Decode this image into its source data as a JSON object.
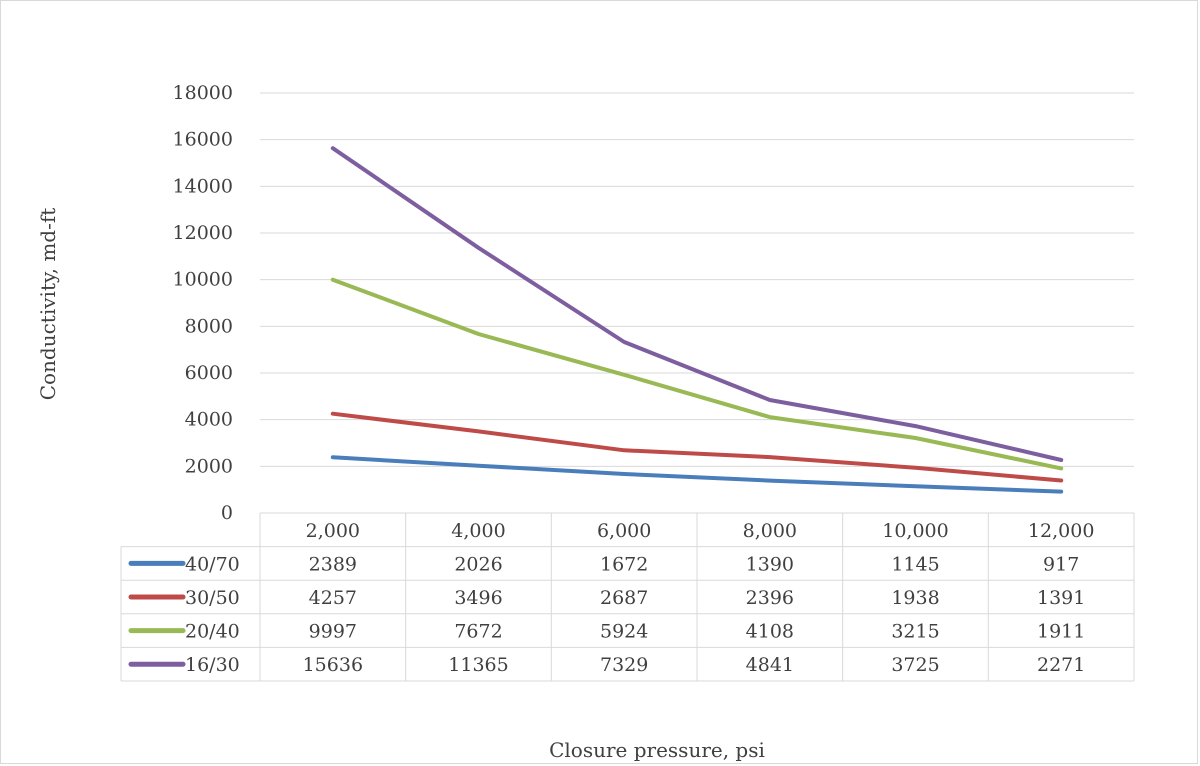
{
  "chart_data": {
    "type": "line",
    "title": "",
    "xlabel": "Closure pressure, psi",
    "ylabel": "Conductivity, md-ft",
    "categories": [
      "2,000",
      "4,000",
      "6,000",
      "8,000",
      "10,000",
      "12,000"
    ],
    "ylim": [
      0,
      18000
    ],
    "yticks": [
      0,
      2000,
      4000,
      6000,
      8000,
      10000,
      12000,
      14000,
      16000,
      18000
    ],
    "grid": true,
    "legend": "data-table",
    "series": [
      {
        "name": "40/70",
        "color": "#4a7ebb",
        "values": [
          2389,
          2026,
          1672,
          1390,
          1145,
          917
        ]
      },
      {
        "name": "30/50",
        "color": "#be4b48",
        "values": [
          4257,
          3496,
          2687,
          2396,
          1938,
          1391
        ]
      },
      {
        "name": "20/40",
        "color": "#98b954",
        "values": [
          9997,
          7672,
          5924,
          4108,
          3215,
          1911
        ]
      },
      {
        "name": "16/30",
        "color": "#7d5fa0",
        "values": [
          15636,
          11365,
          7329,
          4841,
          3725,
          2271
        ]
      }
    ]
  }
}
